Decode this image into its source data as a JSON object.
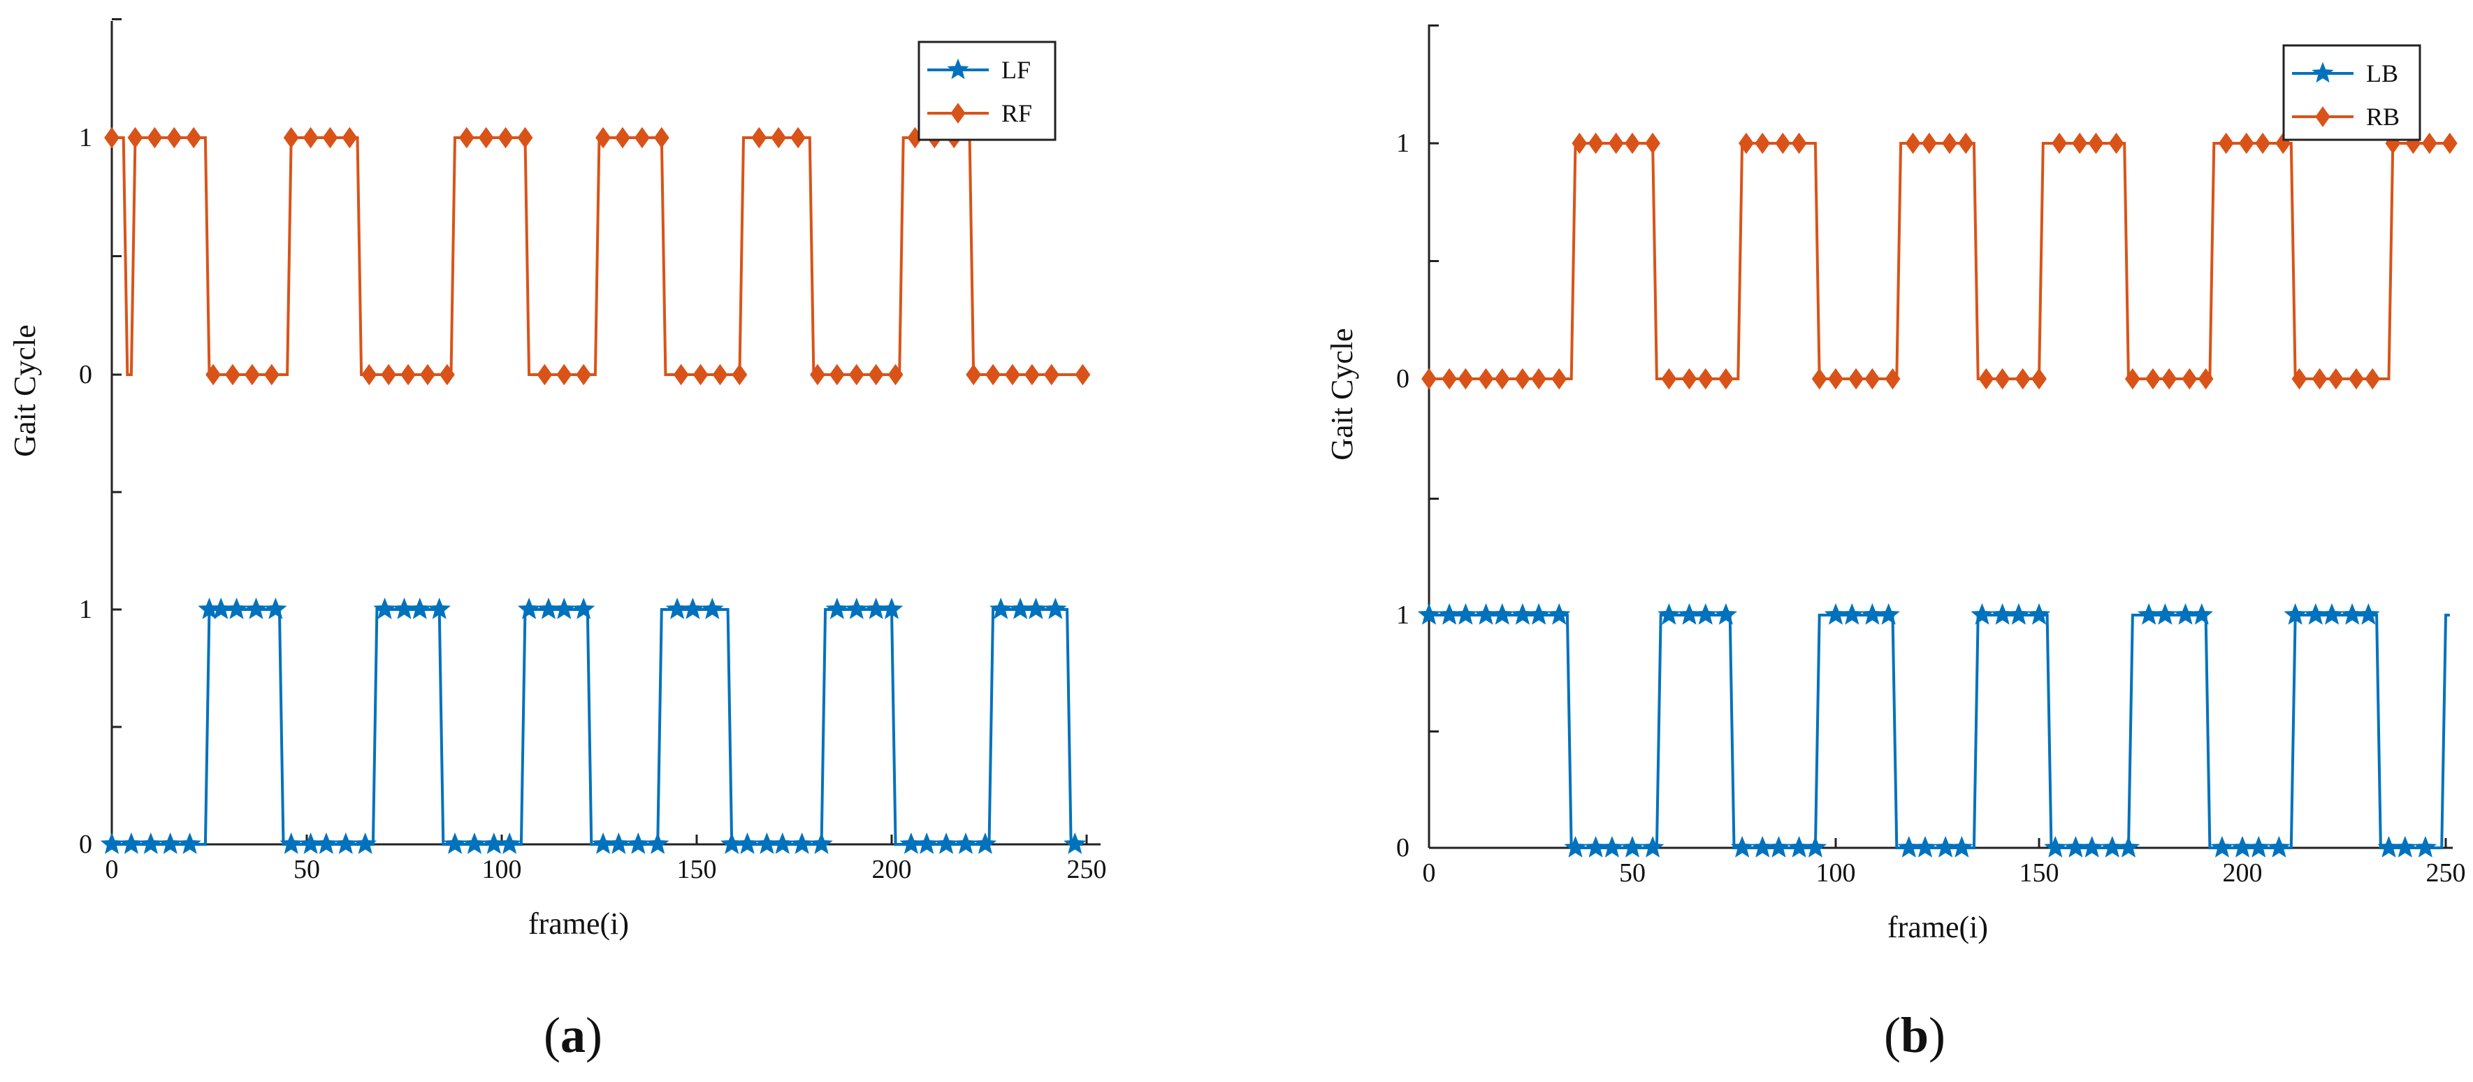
{
  "chart_data": [
    {
      "panel": "(a)",
      "type": "line",
      "xlabel": "frame(i)",
      "ylabel": "Gait Cycle",
      "xlim": [
        0,
        250
      ],
      "x_ticks": [
        0,
        50,
        100,
        150,
        200,
        250
      ],
      "lower_ytick_labels": [
        "0",
        "1"
      ],
      "upper_ytick_labels": [
        "0",
        "1"
      ],
      "grid": false,
      "legend_placement": "top-right",
      "series": [
        {
          "name": "LF",
          "color": "#0072BD",
          "marker": "star",
          "x_length": 249,
          "on_intervals": [
            [
              25,
              43
            ],
            [
              68,
              84
            ],
            [
              106,
              122
            ],
            [
              141,
              158
            ],
            [
              183,
              200
            ],
            [
              226,
              245
            ]
          ],
          "value_when_on": 1,
          "value_when_off": 0,
          "marker_x": [
            0,
            5,
            10,
            15,
            20,
            25,
            28,
            32,
            37,
            42,
            46,
            51,
            55,
            60,
            65,
            70,
            75,
            79,
            84,
            88,
            93,
            98,
            102,
            107,
            112,
            116,
            121,
            126,
            130,
            135,
            140,
            145,
            149,
            154,
            159,
            163,
            168,
            172,
            177,
            182,
            186,
            191,
            196,
            200,
            205,
            209,
            214,
            219,
            224,
            228,
            233,
            237,
            242,
            247
          ]
        },
        {
          "name": "RF",
          "color": "#D95319",
          "marker": "diamond",
          "x_length": 249,
          "on_intervals": [
            [
              0,
              3
            ],
            [
              6,
              24
            ],
            [
              46,
              63
            ],
            [
              88,
              106
            ],
            [
              125,
              141
            ],
            [
              162,
              179
            ],
            [
              203,
              220
            ],
            [
              250,
              252
            ]
          ],
          "value_when_on": 1,
          "value_when_off": 0,
          "marker_x": [
            0,
            6,
            11,
            16,
            21,
            26,
            31,
            36,
            41,
            46,
            51,
            56,
            61,
            66,
            71,
            76,
            81,
            86,
            91,
            96,
            101,
            106,
            111,
            116,
            121,
            126,
            131,
            136,
            141,
            146,
            151,
            156,
            161,
            166,
            171,
            176,
            181,
            186,
            191,
            196,
            201,
            206,
            211,
            216,
            221,
            226,
            231,
            236,
            241,
            249
          ]
        }
      ]
    },
    {
      "panel": "(b)",
      "type": "line",
      "xlabel": "frame(i)",
      "ylabel": "Gait Cycle",
      "xlim": [
        0,
        250
      ],
      "x_ticks": [
        0,
        50,
        100,
        150,
        200,
        250
      ],
      "lower_ytick_labels": [
        "0",
        "1"
      ],
      "upper_ytick_labels": [
        "0",
        "1"
      ],
      "grid": false,
      "legend_placement": "top-right",
      "series": [
        {
          "name": "LB",
          "color": "#0072BD",
          "marker": "star",
          "x_length": 251,
          "on_intervals": [
            [
              0,
              34
            ],
            [
              57,
              74
            ],
            [
              96,
              114
            ],
            [
              135,
              152
            ],
            [
              173,
              191
            ],
            [
              213,
              233
            ],
            [
              250,
              251
            ]
          ],
          "value_when_on": 1,
          "value_when_off": 0,
          "marker_x": [
            0,
            5,
            9,
            14,
            18,
            23,
            27,
            32,
            36,
            41,
            45,
            50,
            55,
            59,
            64,
            68,
            73,
            77,
            82,
            86,
            91,
            95,
            100,
            104,
            109,
            113,
            118,
            122,
            127,
            131,
            136,
            141,
            145,
            150,
            154,
            159,
            163,
            168,
            172,
            177,
            181,
            186,
            190,
            195,
            200,
            204,
            209,
            213,
            218,
            222,
            227,
            231,
            236,
            240,
            245
          ]
        },
        {
          "name": "RB",
          "color": "#D95319",
          "marker": "diamond",
          "x_length": 251,
          "on_intervals": [
            [
              36,
              55
            ],
            [
              77,
              95
            ],
            [
              116,
              134
            ],
            [
              151,
              171
            ],
            [
              193,
              212
            ],
            [
              237,
              251
            ]
          ],
          "value_when_on": 1,
          "value_when_off": 0,
          "marker_x": [
            0,
            5,
            9,
            14,
            18,
            23,
            27,
            32,
            37,
            41,
            46,
            50,
            55,
            59,
            64,
            68,
            73,
            78,
            82,
            87,
            91,
            96,
            100,
            105,
            109,
            114,
            119,
            123,
            128,
            132,
            137,
            141,
            146,
            150,
            155,
            160,
            164,
            169,
            173,
            178,
            182,
            187,
            191,
            196,
            201,
            205,
            210,
            214,
            219,
            223,
            228,
            232,
            237,
            242,
            246,
            251
          ]
        }
      ]
    }
  ]
}
